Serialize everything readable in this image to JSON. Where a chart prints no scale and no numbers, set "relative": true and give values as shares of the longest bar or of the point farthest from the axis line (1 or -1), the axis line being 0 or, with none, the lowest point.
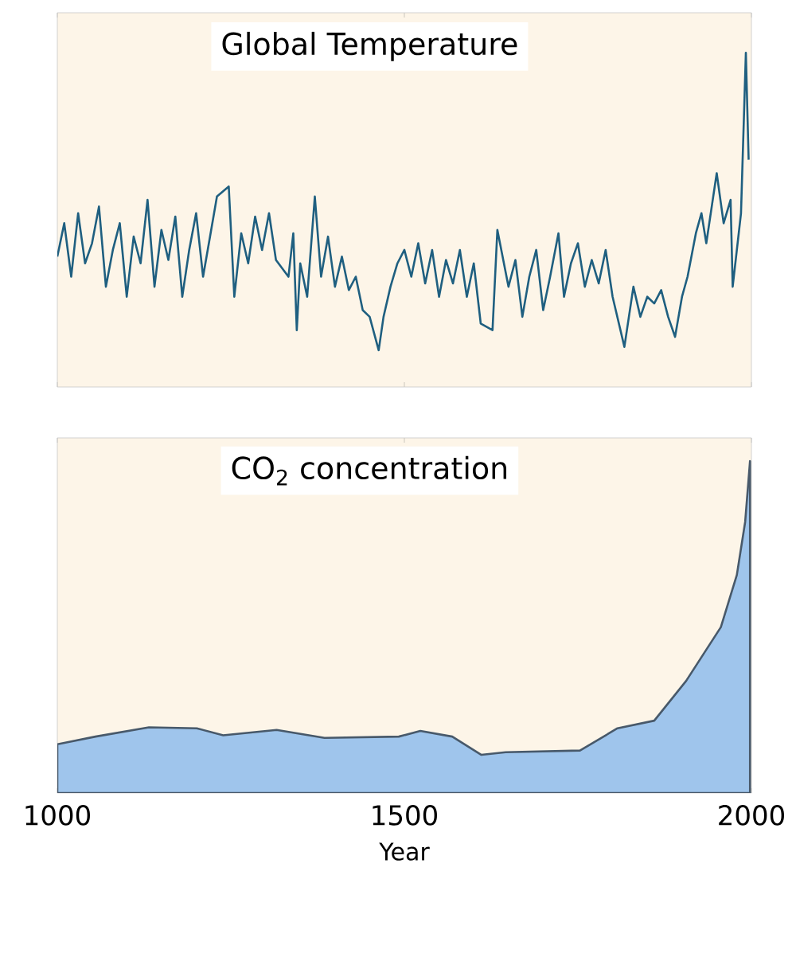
{
  "chart_data": [
    {
      "type": "line",
      "title": "Global Temperature",
      "relative": true,
      "color": "#1f5f80",
      "xlim": [
        1000,
        2000
      ],
      "xticks": [
        1000,
        1500,
        2000
      ],
      "tick_labels": false,
      "x": [
        1000,
        1010,
        1020,
        1030,
        1040,
        1050,
        1060,
        1070,
        1080,
        1090,
        1100,
        1110,
        1120,
        1130,
        1140,
        1150,
        1160,
        1170,
        1180,
        1190,
        1200,
        1210,
        1220,
        1230,
        1247,
        1255,
        1265,
        1275,
        1285,
        1295,
        1305,
        1315,
        1333,
        1340,
        1345,
        1350,
        1360,
        1371,
        1380,
        1390,
        1400,
        1410,
        1420,
        1430,
        1440,
        1450,
        1463,
        1470,
        1480,
        1490,
        1500,
        1510,
        1520,
        1530,
        1540,
        1550,
        1560,
        1570,
        1580,
        1590,
        1600,
        1610,
        1627,
        1634,
        1650,
        1660,
        1670,
        1680,
        1690,
        1700,
        1710,
        1722,
        1730,
        1740,
        1750,
        1760,
        1770,
        1780,
        1790,
        1800,
        1817,
        1830,
        1840,
        1850,
        1860,
        1870,
        1880,
        1890,
        1900,
        1908,
        1920,
        1928,
        1935,
        1950,
        1960,
        1970,
        1973,
        1985,
        1992,
        1996
      ],
      "values": [
        0.39,
        0.49,
        0.33,
        0.52,
        0.37,
        0.43,
        0.54,
        0.3,
        0.41,
        0.49,
        0.27,
        0.45,
        0.37,
        0.56,
        0.3,
        0.47,
        0.38,
        0.51,
        0.27,
        0.41,
        0.52,
        0.33,
        0.45,
        0.57,
        0.6,
        0.27,
        0.46,
        0.37,
        0.51,
        0.41,
        0.52,
        0.38,
        0.33,
        0.46,
        0.17,
        0.37,
        0.27,
        0.57,
        0.33,
        0.45,
        0.3,
        0.39,
        0.29,
        0.33,
        0.23,
        0.21,
        0.11,
        0.21,
        0.3,
        0.37,
        0.41,
        0.33,
        0.43,
        0.31,
        0.41,
        0.27,
        0.38,
        0.31,
        0.41,
        0.27,
        0.37,
        0.19,
        0.17,
        0.47,
        0.3,
        0.38,
        0.21,
        0.33,
        0.41,
        0.23,
        0.33,
        0.46,
        0.27,
        0.37,
        0.43,
        0.3,
        0.38,
        0.31,
        0.41,
        0.27,
        0.12,
        0.3,
        0.21,
        0.27,
        0.25,
        0.29,
        0.21,
        0.15,
        0.27,
        0.33,
        0.46,
        0.52,
        0.43,
        0.64,
        0.49,
        0.56,
        0.3,
        0.52,
        1,
        0.68
      ]
    },
    {
      "type": "area",
      "title": "CO$_{2}$ concentration",
      "xlabel": "Year",
      "relative": true,
      "color": "#9fc5ec",
      "xlim": [
        1000,
        2000
      ],
      "xticks": [
        1000,
        1500,
        2000
      ],
      "x": [
        1000,
        1055,
        1132,
        1201,
        1239,
        1316,
        1385,
        1492,
        1523,
        1569,
        1611,
        1646,
        1753,
        1807,
        1860,
        1906,
        1956,
        1979,
        1991,
        1998
      ],
      "values": [
        0.147,
        0.17,
        0.198,
        0.195,
        0.174,
        0.19,
        0.166,
        0.17,
        0.187,
        0.17,
        0.115,
        0.123,
        0.128,
        0.195,
        0.218,
        0.338,
        0.5,
        0.657,
        0.817,
        1
      ]
    }
  ]
}
